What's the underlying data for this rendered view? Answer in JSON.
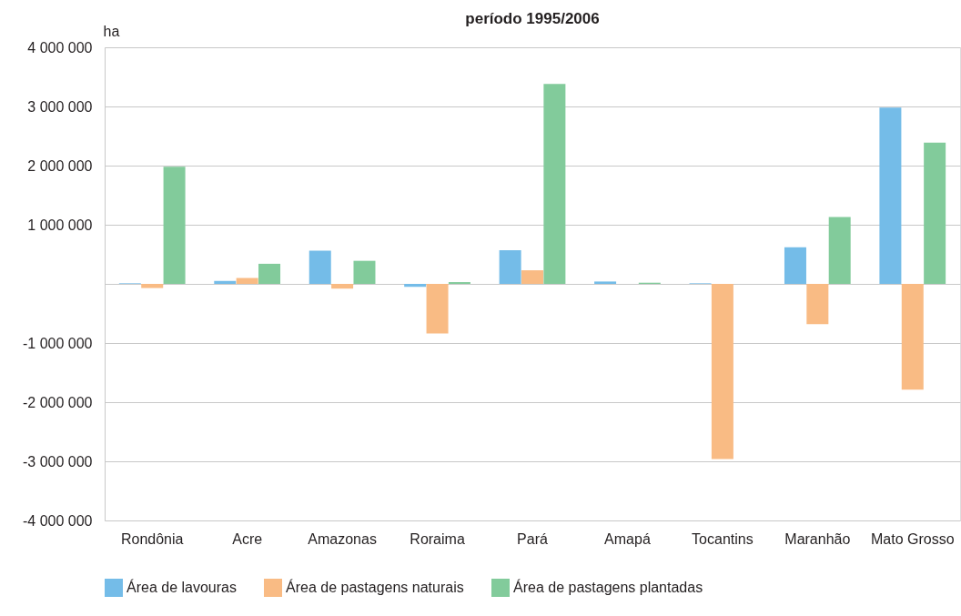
{
  "chart_data": {
    "type": "bar",
    "title": "período 1995/2006",
    "ylabel": "ha",
    "categories": [
      "Rondônia",
      "Acre",
      "Amazonas",
      "Roraima",
      "Pará",
      "Amapá",
      "Tocantins",
      "Maranhão",
      "Mato Grosso"
    ],
    "series": [
      {
        "name": "Área de lavouras",
        "color": "#74bce8",
        "values": [
          10000,
          50000,
          560000,
          -50000,
          570000,
          40000,
          10000,
          620000,
          2980000
        ]
      },
      {
        "name": "Área de pastagens naturais",
        "color": "#f9bb84",
        "values": [
          -70000,
          100000,
          -80000,
          -840000,
          230000,
          0,
          -2960000,
          -680000,
          -1790000
        ]
      },
      {
        "name": "Área de pastagens plantadas",
        "color": "#82cb9b",
        "values": [
          1980000,
          340000,
          390000,
          30000,
          3380000,
          20000,
          0,
          1130000,
          2390000
        ]
      }
    ],
    "ylim": [
      -4000000,
      4000000
    ],
    "yticks": [
      {
        "value": -4000000,
        "label": "-4 000 000"
      },
      {
        "value": -3000000,
        "label": "-3 000 000"
      },
      {
        "value": -2000000,
        "label": "-2 000 000"
      },
      {
        "value": -1000000,
        "label": "-1 000 000"
      },
      {
        "value": 0,
        "label": null
      },
      {
        "value": 1000000,
        "label": "1 000 000"
      },
      {
        "value": 2000000,
        "label": "2 000 000"
      },
      {
        "value": 3000000,
        "label": "3 000 000"
      },
      {
        "value": 4000000,
        "label": "4 000 000"
      }
    ],
    "grid": "y",
    "legend": "bottom"
  }
}
